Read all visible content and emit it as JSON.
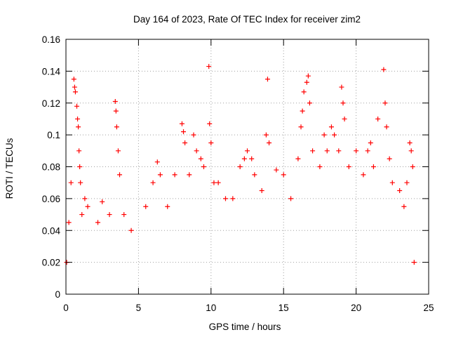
{
  "chart_data": {
    "type": "scatter",
    "title": "Day 164 of 2023, Rate Of TEC Index for receiver zim2",
    "xlabel": "GPS time / hours",
    "ylabel": "ROTI / TECUs",
    "xlim": [
      0,
      25
    ],
    "ylim": [
      0,
      0.16
    ],
    "xticks": [
      0,
      5,
      10,
      15,
      20,
      25
    ],
    "xtick_labels": [
      "0",
      "5",
      "10",
      "15",
      "20",
      "25"
    ],
    "yticks": [
      0,
      0.02,
      0.04,
      0.06,
      0.08,
      0.1,
      0.12,
      0.14,
      0.16
    ],
    "ytick_labels": [
      "0",
      "0.02",
      "0.04",
      "0.06",
      "0.08",
      "0.1",
      "0.12",
      "0.14",
      "0.16"
    ],
    "grid": true,
    "marker": "plus",
    "series": [
      {
        "name": "zim2",
        "color": "#ff0000",
        "points": [
          [
            0.05,
            0.02
          ],
          [
            0.2,
            0.045
          ],
          [
            0.35,
            0.07
          ],
          [
            0.55,
            0.135
          ],
          [
            0.6,
            0.13
          ],
          [
            0.65,
            0.127
          ],
          [
            0.75,
            0.118
          ],
          [
            0.8,
            0.11
          ],
          [
            0.85,
            0.105
          ],
          [
            0.9,
            0.09
          ],
          [
            0.95,
            0.08
          ],
          [
            1.0,
            0.07
          ],
          [
            1.1,
            0.05
          ],
          [
            1.3,
            0.06
          ],
          [
            1.5,
            0.055
          ],
          [
            2.2,
            0.045
          ],
          [
            2.5,
            0.058
          ],
          [
            3.0,
            0.05
          ],
          [
            3.4,
            0.121
          ],
          [
            3.45,
            0.115
          ],
          [
            3.5,
            0.105
          ],
          [
            3.6,
            0.09
          ],
          [
            3.7,
            0.075
          ],
          [
            4.0,
            0.05
          ],
          [
            4.5,
            0.04
          ],
          [
            5.5,
            0.055
          ],
          [
            6.0,
            0.07
          ],
          [
            6.3,
            0.083
          ],
          [
            6.5,
            0.075
          ],
          [
            7.0,
            0.055
          ],
          [
            7.5,
            0.075
          ],
          [
            8.0,
            0.107
          ],
          [
            8.1,
            0.102
          ],
          [
            8.2,
            0.095
          ],
          [
            8.5,
            0.075
          ],
          [
            8.8,
            0.1
          ],
          [
            9.0,
            0.09
          ],
          [
            9.3,
            0.085
          ],
          [
            9.5,
            0.08
          ],
          [
            9.85,
            0.143
          ],
          [
            9.9,
            0.107
          ],
          [
            10.0,
            0.095
          ],
          [
            10.2,
            0.07
          ],
          [
            10.5,
            0.07
          ],
          [
            11.0,
            0.06
          ],
          [
            11.5,
            0.06
          ],
          [
            12.0,
            0.08
          ],
          [
            12.3,
            0.085
          ],
          [
            12.5,
            0.09
          ],
          [
            12.8,
            0.085
          ],
          [
            13.0,
            0.075
          ],
          [
            13.5,
            0.065
          ],
          [
            13.8,
            0.1
          ],
          [
            13.9,
            0.135
          ],
          [
            14.0,
            0.095
          ],
          [
            14.5,
            0.078
          ],
          [
            15.0,
            0.075
          ],
          [
            15.5,
            0.06
          ],
          [
            16.0,
            0.085
          ],
          [
            16.2,
            0.105
          ],
          [
            16.3,
            0.115
          ],
          [
            16.4,
            0.127
          ],
          [
            16.6,
            0.133
          ],
          [
            16.7,
            0.137
          ],
          [
            16.8,
            0.12
          ],
          [
            17.0,
            0.09
          ],
          [
            17.5,
            0.08
          ],
          [
            17.8,
            0.1
          ],
          [
            18.0,
            0.09
          ],
          [
            18.3,
            0.105
          ],
          [
            18.5,
            0.1
          ],
          [
            18.8,
            0.09
          ],
          [
            19.0,
            0.13
          ],
          [
            19.1,
            0.12
          ],
          [
            19.2,
            0.11
          ],
          [
            19.5,
            0.08
          ],
          [
            20.0,
            0.09
          ],
          [
            20.5,
            0.075
          ],
          [
            20.8,
            0.09
          ],
          [
            21.0,
            0.095
          ],
          [
            21.2,
            0.08
          ],
          [
            21.5,
            0.11
          ],
          [
            21.9,
            0.141
          ],
          [
            22.0,
            0.12
          ],
          [
            22.1,
            0.105
          ],
          [
            22.3,
            0.085
          ],
          [
            22.5,
            0.07
          ],
          [
            23.0,
            0.065
          ],
          [
            23.3,
            0.055
          ],
          [
            23.5,
            0.07
          ],
          [
            23.7,
            0.095
          ],
          [
            23.8,
            0.09
          ],
          [
            23.9,
            0.08
          ],
          [
            24.0,
            0.02
          ]
        ]
      }
    ]
  }
}
